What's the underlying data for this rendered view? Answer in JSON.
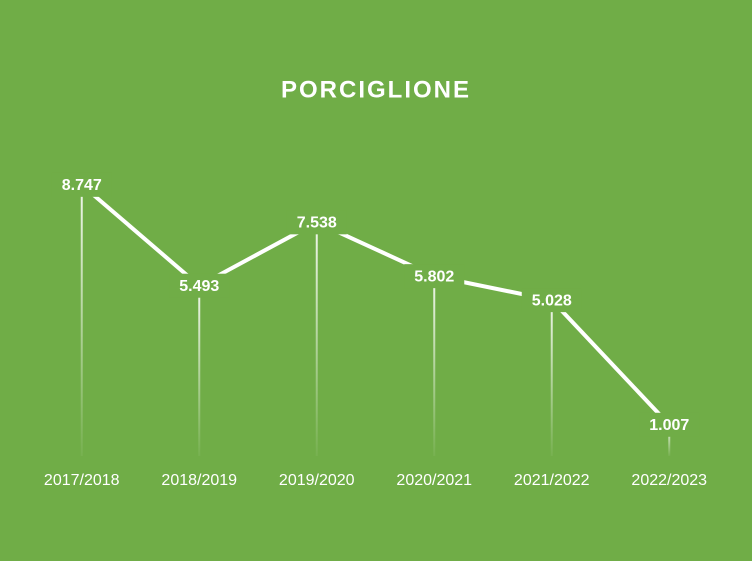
{
  "chart_data": {
    "type": "line",
    "title": "PORCIGLIONE",
    "categories": [
      "2017/2018",
      "2018/2019",
      "2019/2020",
      "2020/2021",
      "2021/2022",
      "2022/2023"
    ],
    "values": [
      8747,
      5493,
      7538,
      5802,
      5028,
      1007
    ],
    "value_labels": [
      "8.747",
      "5.493",
      "7.538",
      "5.802",
      "5.028",
      "1.007"
    ],
    "color": "#ffffff",
    "drop_lines": true
  }
}
